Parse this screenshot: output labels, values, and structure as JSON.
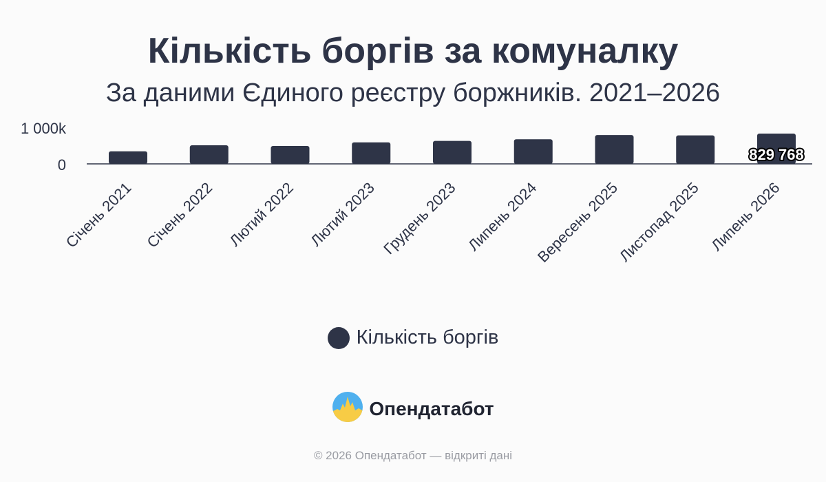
{
  "title": "Кількість боргів за комуналку",
  "subtitle": "За даними Єдиного реєстру боржників. 2021–2026",
  "legend": {
    "label": "Кількість боргів"
  },
  "brand": {
    "name": "Опендатабот",
    "logo_icon": "opendatabot-logo-icon"
  },
  "footer": "© 2026 Опендатабот — відкриті дані",
  "colors": {
    "bar": "#2e3447",
    "background": "#fbfbfb",
    "footer": "#9a9ca3"
  },
  "chart_data": {
    "type": "bar",
    "categories": [
      "Січень 2021",
      "Січень 2022",
      "Лютий 2022",
      "Лютий 2023",
      "Грудень 2023",
      "Липень 2024",
      "Вересень 2025",
      "Листопад 2025",
      "Липень 2026"
    ],
    "series": [
      {
        "name": "Кількість боргів",
        "values": [
          345000,
          510000,
          490000,
          590000,
          630000,
          675000,
          790000,
          780000,
          829768
        ]
      }
    ],
    "y_ticks": [
      {
        "value": 0,
        "label": "0"
      },
      {
        "value": 1000000,
        "label": "1 000k"
      }
    ],
    "ylim": [
      0,
      1000000
    ],
    "data_labels": [
      {
        "index": 8,
        "label": "829 768"
      }
    ],
    "legend_position": "bottom",
    "grid": false
  }
}
